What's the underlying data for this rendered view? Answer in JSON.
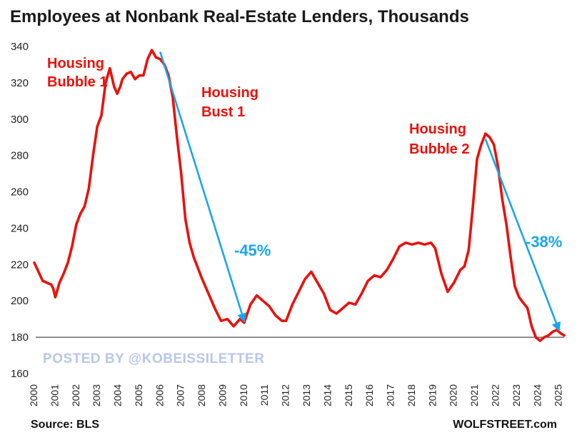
{
  "chart_data": {
    "type": "line",
    "title": "Employees at Nonbank Real-Estate Lenders, Thousands",
    "xlabel": "",
    "ylabel": "",
    "xlim": [
      2000,
      2025.25
    ],
    "ylim": [
      160,
      340
    ],
    "y_ticks": [
      160,
      180,
      200,
      220,
      240,
      260,
      280,
      300,
      320,
      340
    ],
    "x_ticks": [
      "2000",
      "2001",
      "2002",
      "2003",
      "2004",
      "2005",
      "2006",
      "2007",
      "2008",
      "2009",
      "2010",
      "2011",
      "2012",
      "2013",
      "2014",
      "2015",
      "2016",
      "2017",
      "2018",
      "2019",
      "2020",
      "2021",
      "2022",
      "2023",
      "2024",
      "2025"
    ],
    "grid": false,
    "reference_line": 180,
    "series": [
      {
        "color": "#e8120c",
        "x": [
          2000.0,
          2000.2,
          2000.4,
          2000.6,
          2000.8,
          2000.9,
          2001.0,
          2001.2,
          2001.4,
          2001.6,
          2001.8,
          2002.0,
          2002.2,
          2002.4,
          2002.6,
          2002.8,
          2003.0,
          2003.2,
          2003.4,
          2003.6,
          2003.8,
          2003.95,
          2004.1,
          2004.2,
          2004.4,
          2004.6,
          2004.8,
          2005.0,
          2005.2,
          2005.4,
          2005.6,
          2005.8,
          2006.0,
          2006.2,
          2006.4,
          2006.6,
          2006.8,
          2007.0,
          2007.2,
          2007.4,
          2007.6,
          2007.8,
          2008.0,
          2008.3,
          2008.6,
          2008.9,
          2009.2,
          2009.5,
          2009.8,
          2010.0,
          2010.3,
          2010.6,
          2010.9,
          2011.2,
          2011.5,
          2011.8,
          2012.0,
          2012.3,
          2012.6,
          2012.9,
          2013.2,
          2013.5,
          2013.8,
          2014.1,
          2014.4,
          2014.7,
          2015.0,
          2015.3,
          2015.6,
          2015.9,
          2016.2,
          2016.5,
          2016.8,
          2017.1,
          2017.4,
          2017.7,
          2018.0,
          2018.3,
          2018.6,
          2018.9,
          2019.1,
          2019.4,
          2019.7,
          2020.0,
          2020.3,
          2020.5,
          2020.7,
          2020.9,
          2021.1,
          2021.3,
          2021.5,
          2021.7,
          2021.9,
          2022.1,
          2022.3,
          2022.5,
          2022.7,
          2022.9,
          2023.1,
          2023.3,
          2023.5,
          2023.7,
          2023.9,
          2024.1,
          2024.3,
          2024.5,
          2024.7,
          2024.9,
          2025.1,
          2025.25
        ],
        "values": [
          221,
          216,
          211,
          210,
          209,
          207,
          202,
          210,
          215,
          221,
          230,
          242,
          248,
          252,
          262,
          280,
          296,
          302,
          320,
          328,
          318,
          314,
          318,
          322,
          325,
          326,
          322,
          324,
          324,
          333,
          338,
          334,
          333,
          330,
          324,
          312,
          290,
          270,
          245,
          232,
          224,
          218,
          212,
          204,
          196,
          189,
          190,
          186,
          190,
          188,
          198,
          203,
          200,
          197,
          192,
          189,
          189,
          198,
          205,
          212,
          216,
          210,
          204,
          195,
          193,
          196,
          199,
          198,
          204,
          211,
          214,
          213,
          217,
          223,
          230,
          232,
          231,
          232,
          231,
          232,
          229,
          215,
          205,
          210,
          217,
          219,
          228,
          252,
          278,
          286,
          292,
          290,
          286,
          274,
          256,
          242,
          224,
          208,
          202,
          199,
          196,
          186,
          180,
          178,
          180,
          181,
          183,
          184,
          182,
          181
        ]
      }
    ],
    "annotations": [
      {
        "text": "Housing",
        "color": "#e8120c"
      },
      {
        "text": "Bubble 1",
        "color": "#e8120c"
      },
      {
        "text": "Housing",
        "color": "#e8120c"
      },
      {
        "text": "Bust 1",
        "color": "#e8120c"
      },
      {
        "text": "Housing",
        "color": "#e8120c"
      },
      {
        "text": "Bubble 2",
        "color": "#e8120c"
      },
      {
        "text": "-45%",
        "color": "#1aa6e6"
      },
      {
        "text": "-38%",
        "color": "#1aa6e6"
      }
    ],
    "trend_arrows": [
      {
        "from": [
          2006.0,
          337
        ],
        "to": [
          2010.0,
          189
        ],
        "color": "#1aa6e6"
      },
      {
        "from": [
          2021.5,
          289
        ],
        "to": [
          2025.0,
          184
        ],
        "color": "#1aa6e6"
      }
    ]
  },
  "footer": {
    "source": "Source: BLS",
    "brand": "WOLFSTREET.com",
    "watermark": "POSTED BY @KOBEISSILETTER"
  }
}
